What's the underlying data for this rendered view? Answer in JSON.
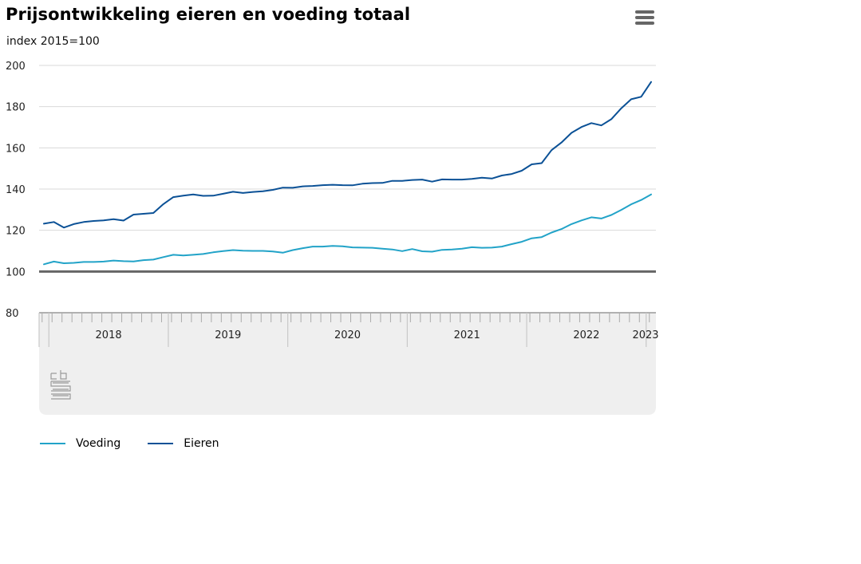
{
  "header": {
    "title": "Prijsontwikkeling eieren en voeding totaal",
    "subtitle": "index 2015=100"
  },
  "menu": {
    "icon": "hamburger-menu-icon"
  },
  "logo": {
    "icon": "cbs-logo-icon"
  },
  "colors": {
    "voeding": "#22a3c8",
    "eieren": "#0b5196",
    "grid": "#d9d9d9",
    "baseline": "#666666",
    "navigator_bg": "#efefef"
  },
  "chart_data": {
    "type": "line",
    "title": "Prijsontwikkeling eieren en voeding totaal",
    "subtitle": "index 2015=100",
    "ylim": [
      80,
      200
    ],
    "yticks": [
      "80",
      "100",
      "120",
      "140",
      "160",
      "180",
      "200"
    ],
    "baseline": 100,
    "x_start": "2017-12",
    "x_labels": [
      {
        "label": "2018",
        "year": 2018
      },
      {
        "label": "2019",
        "year": 2019
      },
      {
        "label": "2020",
        "year": 2020
      },
      {
        "label": "2021",
        "year": 2021
      },
      {
        "label": "2022",
        "year": 2022
      },
      {
        "label": "2023",
        "year": 2023
      }
    ],
    "grid": true,
    "legend_position": "bottom-left",
    "series": [
      {
        "name": "Voeding",
        "values": [
          103.5,
          104.8,
          104.0,
          104.2,
          104.6,
          104.6,
          104.8,
          105.3,
          105.0,
          104.9,
          105.5,
          105.8,
          107.0,
          108.1,
          107.8,
          108.1,
          108.5,
          109.3,
          109.9,
          110.4,
          110.1,
          110.0,
          110.0,
          109.7,
          109.1,
          110.4,
          111.3,
          112.1,
          112.1,
          112.4,
          112.2,
          111.7,
          111.6,
          111.5,
          111.1,
          110.7,
          109.9,
          110.9,
          109.8,
          109.6,
          110.5,
          110.7,
          111.1,
          111.8,
          111.5,
          111.6,
          112.1,
          113.3,
          114.4,
          116.1,
          116.7,
          118.9,
          120.6,
          123.0,
          124.8,
          126.3,
          125.7,
          127.4,
          129.9,
          132.6,
          134.7,
          137.4
        ]
      },
      {
        "name": "Eieren",
        "values": [
          123.2,
          124.0,
          121.3,
          123.0,
          124.0,
          124.5,
          124.8,
          125.4,
          124.7,
          127.6,
          128.0,
          128.4,
          132.7,
          136.1,
          136.8,
          137.4,
          136.7,
          136.8,
          137.7,
          138.7,
          138.1,
          138.6,
          138.9,
          139.6,
          140.7,
          140.6,
          141.3,
          141.5,
          141.9,
          142.1,
          141.9,
          141.8,
          142.6,
          142.9,
          143.0,
          144.0,
          144.0,
          144.4,
          144.6,
          143.6,
          144.7,
          144.6,
          144.6,
          144.9,
          145.5,
          145.1,
          146.6,
          147.3,
          148.9,
          152.0,
          152.6,
          158.9,
          162.6,
          167.3,
          170.1,
          172.0,
          170.9,
          173.9,
          179.2,
          183.6,
          184.8,
          192.0
        ]
      }
    ]
  }
}
